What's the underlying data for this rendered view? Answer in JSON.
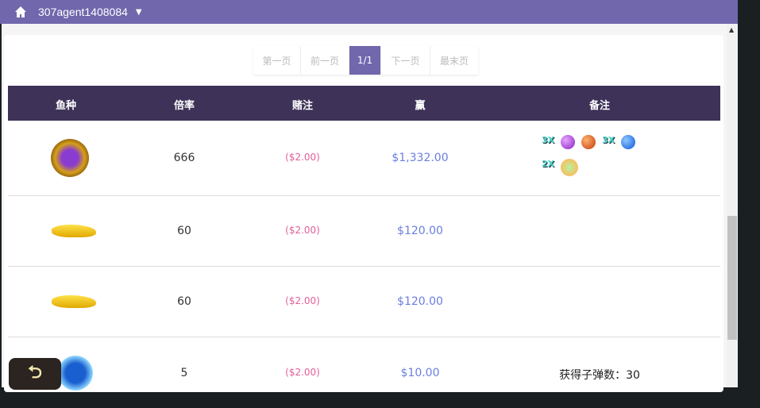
{
  "header": {
    "username": "307agent1408084",
    "icon": "home-icon"
  },
  "pager": {
    "first": "第一页",
    "prev": "前一页",
    "current": "1/1",
    "next": "下一页",
    "last": "最末页"
  },
  "table": {
    "headers": [
      "鱼种",
      "倍率",
      "赌注",
      "赢",
      "备注"
    ],
    "rows": [
      {
        "fish": "dragon-orb",
        "multiplier": "666",
        "bet": "($2.00)",
        "win": "$1,332.00",
        "note": "",
        "bonus": [
          "3X",
          "purple-orb",
          "red-orb",
          "3X",
          "blue-orb",
          "2X",
          "rainbow-orb"
        ]
      },
      {
        "fish": "golden-shark",
        "multiplier": "60",
        "bet": "($2.00)",
        "win": "$120.00",
        "note": ""
      },
      {
        "fish": "golden-shark",
        "multiplier": "60",
        "bet": "($2.00)",
        "win": "$120.00",
        "note": ""
      },
      {
        "fish": "bullet-bomb",
        "multiplier": "5",
        "bet": "($2.00)",
        "win": "$10.00",
        "note": "获得子弹数：30"
      }
    ]
  },
  "colors": {
    "brand": "#7067ad",
    "table_header": "#3e3258",
    "bet": "#e0619b",
    "win": "#6a7ee0"
  }
}
